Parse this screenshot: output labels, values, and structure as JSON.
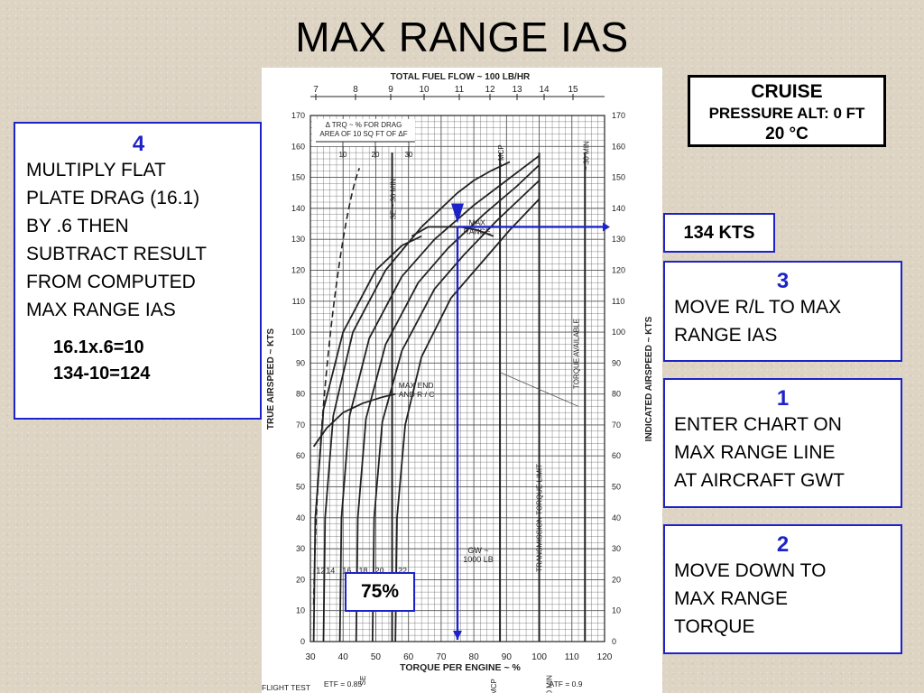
{
  "slide": {
    "title": "MAX RANGE IAS"
  },
  "step4": {
    "number": "4",
    "lines": [
      "MULTIPLY FLAT",
      "PLATE DRAG (16.1)",
      "BY .6 THEN",
      "SUBTRACT RESULT",
      "FROM COMPUTED",
      "MAX RANGE IAS"
    ],
    "calc": [
      "16.1x.6=10",
      "134-10=124"
    ]
  },
  "step3": {
    "number": "3",
    "lines": [
      "MOVE R/L TO MAX",
      "RANGE IAS"
    ]
  },
  "step1": {
    "number": "1",
    "lines": [
      "ENTER CHART ON",
      "MAX RANGE LINE",
      "AT AIRCRAFT GWT"
    ]
  },
  "step2": {
    "number": "2",
    "lines": [
      "MOVE DOWN TO",
      "MAX RANGE",
      "TORQUE"
    ]
  },
  "kts_callout": "134 KTS",
  "torque_callout": "75%",
  "cruise_box": {
    "title": "CRUISE",
    "altitude": "PRESSURE ALT: 0 FT",
    "temp": "20 °C"
  },
  "colors": {
    "accent": "#1d23c8",
    "ink": "#222222"
  },
  "chart_data": {
    "type": "line",
    "top_axis_label": "TOTAL FUEL FLOW ~ 100 LB/HR",
    "top_ticks": [
      "7",
      "8",
      "9",
      "10",
      "11",
      "12",
      "13",
      "14",
      "15"
    ],
    "xlabel": "TORQUE PER ENGINE ~ %",
    "ylabel_left": "TRUE AIRSPEED ~ KTS",
    "ylabel_right": "INDICATED AIRSPEED ~ KTS",
    "xlim": [
      30,
      120
    ],
    "ylim_left": [
      0,
      170
    ],
    "ylim_right": [
      0,
      170
    ],
    "x_ticks": [
      30,
      40,
      50,
      60,
      70,
      80,
      90,
      100,
      110,
      120
    ],
    "y_ticks": [
      0,
      10,
      20,
      30,
      40,
      50,
      60,
      70,
      80,
      90,
      100,
      110,
      120,
      130,
      140,
      150,
      160,
      170
    ],
    "grid": true,
    "drag_scale_title": [
      "Δ TRQ ~ % FOR DRAG",
      "AREA OF 10 SQ FT OF ΔF"
    ],
    "drag_scale_ticks": [
      "10",
      "20",
      "30"
    ],
    "gw_label": [
      "GW ~",
      "1000 LB"
    ],
    "gw_values": [
      "12",
      "14",
      "16",
      "18",
      "20",
      "22"
    ],
    "annotations": {
      "max_range": "MAX RANGE",
      "max_end": [
        "MAX END",
        "AND R / C"
      ],
      "torque_available": "TORQUE AVAILABLE",
      "transmission_limit": "TRANSMISSION TORQUE LIMIT",
      "se_30_min": "SE ~ 30 MIN",
      "mcp": "~ MCP",
      "thirty_min": "~ 30 MIN",
      "bottom_se": "SE",
      "bottom_mcp": "MCP",
      "bottom_30min": "30 MIN",
      "etf": "ETF = 0.85",
      "atf": "ATF = 0.9",
      "flight_test": "FLIGHT TEST"
    },
    "series": [
      {
        "name": "12",
        "x": [
          31,
          31.5,
          34,
          40,
          50,
          58,
          62,
          64
        ],
        "y": [
          0,
          40,
          75,
          100,
          120,
          128,
          130,
          131
        ]
      },
      {
        "name": "14",
        "x": [
          34,
          34.5,
          37,
          43,
          53,
          64,
          75,
          80,
          85,
          91
        ],
        "y": [
          0,
          40,
          73,
          100,
          120,
          134,
          145,
          149,
          152,
          155
        ]
      },
      {
        "name": "16",
        "x": [
          39,
          39.5,
          42,
          48,
          58,
          68,
          80,
          90,
          100
        ],
        "y": [
          0,
          40,
          73,
          98,
          118,
          130,
          141,
          149,
          157
        ]
      },
      {
        "name": "18",
        "x": [
          44,
          44.5,
          47,
          53,
          63,
          72,
          83,
          93,
          100
        ],
        "y": [
          0,
          40,
          72,
          96,
          116,
          127,
          138,
          147,
          154
        ]
      },
      {
        "name": "20",
        "x": [
          49,
          49.5,
          52,
          58,
          68,
          77,
          87,
          96,
          100
        ],
        "y": [
          0,
          40,
          71,
          94,
          114,
          125,
          136,
          145,
          149
        ]
      },
      {
        "name": "22",
        "x": [
          56,
          56.5,
          59,
          64,
          73,
          82,
          91,
          100
        ],
        "y": [
          0,
          40,
          70,
          92,
          111,
          122,
          133,
          143
        ]
      }
    ],
    "max_range_line": {
      "x": [
        61,
        66,
        71,
        76,
        81,
        86
      ],
      "y": [
        131,
        134,
        134,
        134,
        133,
        131
      ]
    },
    "max_end_line": {
      "x": [
        31,
        35,
        40,
        46,
        52,
        56
      ],
      "y": [
        63,
        69,
        74,
        77,
        79,
        80
      ]
    },
    "power_limits": {
      "se_30_min": 55,
      "mcp": 88,
      "transmission_limit": 100,
      "thirty_min": 114
    },
    "solution": {
      "ias_kts": 134,
      "torque_pct": 75
    }
  }
}
